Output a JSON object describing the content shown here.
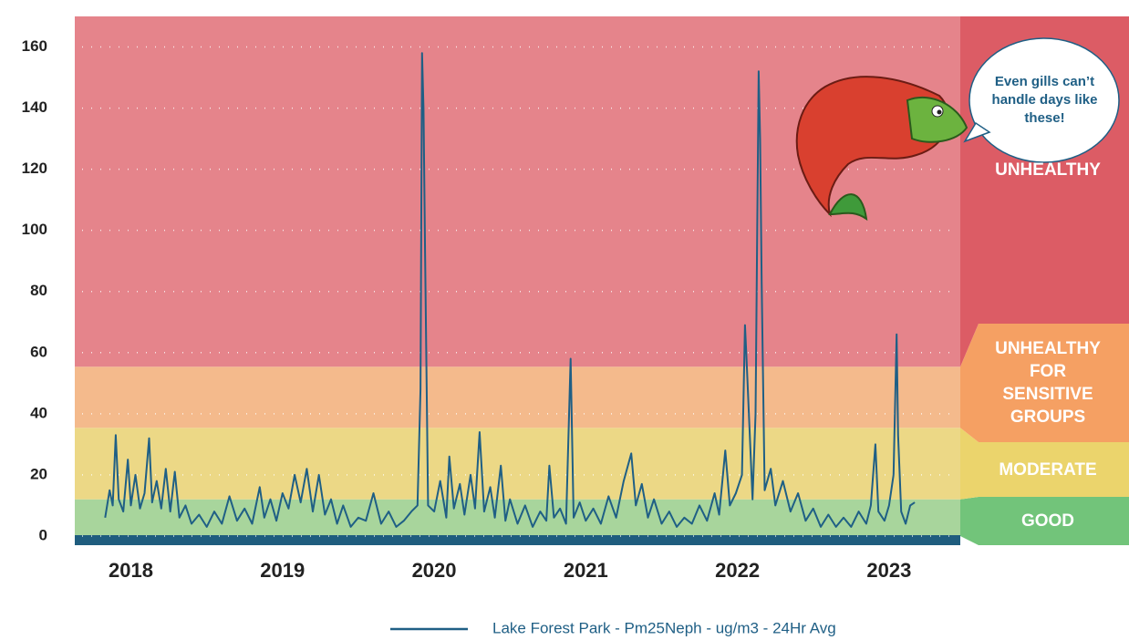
{
  "chart_data": {
    "type": "line",
    "xlim": [
      2017.63,
      2023.47
    ],
    "xticks": [
      2018,
      2019,
      2020,
      2021,
      2022,
      2023
    ],
    "ylim": [
      -3,
      170
    ],
    "yticks": [
      0,
      20,
      40,
      60,
      80,
      100,
      120,
      140,
      160
    ],
    "grid": true,
    "bands": [
      {
        "label": "GOOD",
        "from": 0,
        "color": "#a8d59c",
        "panel_color": "#72c47a"
      },
      {
        "label": "MODERATE",
        "from": 12,
        "color": "#ecd886",
        "panel_color": "#ebd46c"
      },
      {
        "label": "UNHEALTHY FOR SENSITIVE GROUPS",
        "from": 35.4,
        "color": "#f4ba8c",
        "panel_color": "#f5a063"
      },
      {
        "label": "UNHEALTHY",
        "from": 55.4,
        "color": "#e5848b",
        "panel_color": "#dc5c65"
      }
    ],
    "annotation": "Even gills can’t handle days like these!",
    "x": [
      2017.83,
      2017.86,
      2017.88,
      2017.9,
      2017.92,
      2017.95,
      2017.98,
      2018.0,
      2018.03,
      2018.06,
      2018.09,
      2018.12,
      2018.14,
      2018.17,
      2018.2,
      2018.23,
      2018.26,
      2018.29,
      2018.32,
      2018.36,
      2018.4,
      2018.45,
      2018.5,
      2018.55,
      2018.6,
      2018.65,
      2018.7,
      2018.75,
      2018.8,
      2018.85,
      2018.88,
      2018.92,
      2018.96,
      2019.0,
      2019.04,
      2019.08,
      2019.12,
      2019.16,
      2019.2,
      2019.24,
      2019.28,
      2019.32,
      2019.36,
      2019.4,
      2019.45,
      2019.5,
      2019.55,
      2019.6,
      2019.65,
      2019.7,
      2019.75,
      2019.8,
      2019.85,
      2019.89,
      2019.91,
      2019.92,
      2019.93,
      2019.94,
      2019.96,
      2020.0,
      2020.04,
      2020.08,
      2020.1,
      2020.13,
      2020.17,
      2020.2,
      2020.24,
      2020.27,
      2020.3,
      2020.33,
      2020.37,
      2020.4,
      2020.44,
      2020.47,
      2020.5,
      2020.55,
      2020.6,
      2020.65,
      2020.7,
      2020.74,
      2020.76,
      2020.79,
      2020.83,
      2020.87,
      2020.9,
      2020.92,
      2020.96,
      2021.0,
      2021.05,
      2021.1,
      2021.15,
      2021.2,
      2021.25,
      2021.3,
      2021.33,
      2021.37,
      2021.41,
      2021.45,
      2021.5,
      2021.55,
      2021.6,
      2021.65,
      2021.7,
      2021.75,
      2021.8,
      2021.85,
      2021.88,
      2021.92,
      2021.95,
      2021.99,
      2022.03,
      2022.05,
      2022.06,
      2022.08,
      2022.1,
      2022.12,
      2022.14,
      2022.15,
      2022.16,
      2022.18,
      2022.22,
      2022.25,
      2022.3,
      2022.35,
      2022.4,
      2022.45,
      2022.5,
      2022.55,
      2022.6,
      2022.65,
      2022.7,
      2022.75,
      2022.8,
      2022.85,
      2022.88,
      2022.91,
      2022.93,
      2022.97,
      2023.0,
      2023.03,
      2023.05,
      2023.06,
      2023.08,
      2023.11,
      2023.14,
      2023.17
    ],
    "series": [
      {
        "name": "Lake Forest Park - Pm25Neph - ug/m3 - 24Hr Avg",
        "color": "#1f5f85",
        "values": [
          6,
          15,
          10,
          33,
          12,
          8,
          25,
          10,
          20,
          9,
          14,
          32,
          11,
          18,
          9,
          22,
          8,
          21,
          6,
          10,
          4,
          7,
          3,
          8,
          4,
          13,
          5,
          9,
          4,
          16,
          6,
          12,
          5,
          14,
          9,
          20,
          11,
          22,
          8,
          20,
          7,
          12,
          4,
          10,
          3,
          6,
          5,
          14,
          4,
          8,
          3,
          5,
          8,
          10,
          48,
          158,
          140,
          93,
          10,
          8,
          18,
          6,
          26,
          9,
          17,
          7,
          20,
          9,
          34,
          8,
          16,
          6,
          23,
          5,
          12,
          4,
          10,
          3,
          8,
          5,
          23,
          6,
          9,
          4,
          58,
          6,
          11,
          5,
          9,
          4,
          13,
          6,
          18,
          27,
          10,
          17,
          6,
          12,
          4,
          8,
          3,
          6,
          4,
          10,
          5,
          14,
          7,
          28,
          10,
          14,
          20,
          69,
          58,
          35,
          12,
          40,
          152,
          130,
          83,
          15,
          22,
          10,
          18,
          8,
          14,
          5,
          9,
          3,
          7,
          3,
          6,
          3,
          8,
          4,
          10,
          30,
          8,
          5,
          10,
          20,
          66,
          33,
          8,
          4,
          10,
          11
        ]
      }
    ]
  }
}
